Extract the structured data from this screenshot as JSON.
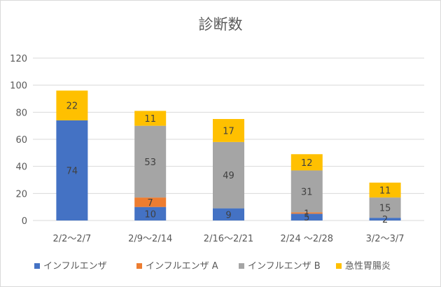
{
  "chart_data": {
    "type": "bar",
    "stacked": true,
    "title": "診断数",
    "xlabel": "",
    "ylabel": "",
    "ylim": [
      0,
      120
    ],
    "yticks": [
      0,
      20,
      40,
      60,
      80,
      100,
      120
    ],
    "grid": true,
    "legend_position": "bottom",
    "categories": [
      "2/2～2/7",
      "2/9～2/14",
      "2/16～2/21",
      "2/24 ～2/28",
      "3/2～3/7"
    ],
    "series": [
      {
        "name": "インフルエンザ",
        "color": "#4472c4",
        "values": [
          74,
          10,
          9,
          5,
          2
        ],
        "label_color": "#404040"
      },
      {
        "name": "インフルエンザ A",
        "color": "#ed7d31",
        "values": [
          0,
          7,
          0,
          1,
          0
        ],
        "label_color": "#404040"
      },
      {
        "name": "インフルエンザ B",
        "color": "#a5a5a5",
        "values": [
          0,
          53,
          49,
          31,
          15
        ],
        "label_color": "#404040"
      },
      {
        "name": "急性胃腸炎",
        "color": "#ffc000",
        "values": [
          22,
          11,
          17,
          12,
          11
        ],
        "label_color": "#404040"
      }
    ],
    "axis_color": "#595959",
    "grid_color": "#d9d9d9"
  }
}
